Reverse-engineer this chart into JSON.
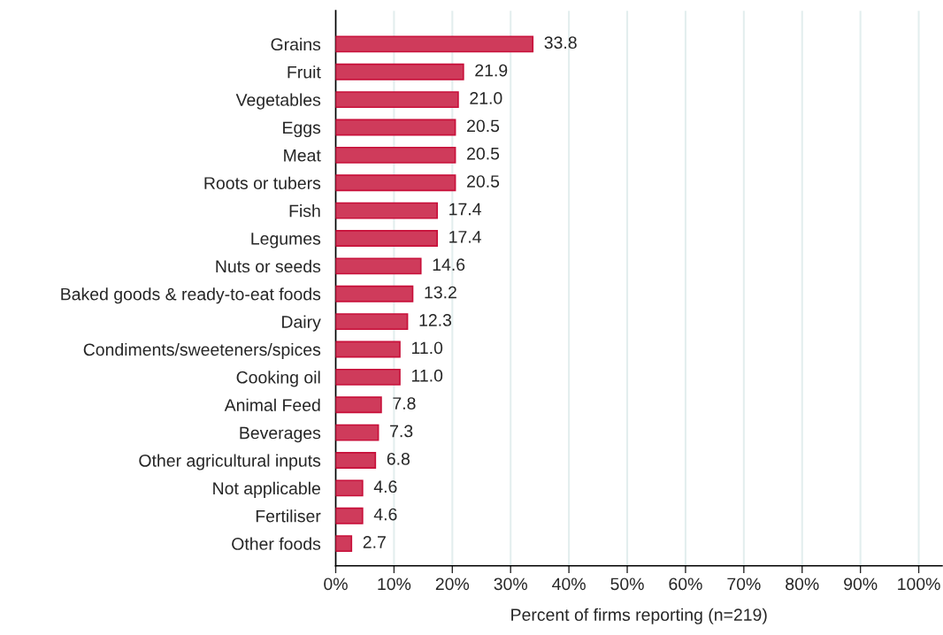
{
  "chart_data": {
    "type": "bar",
    "orientation": "horizontal",
    "xlabel": "Percent of firms reporting (n=219)",
    "categories": [
      "Grains",
      "Fruit",
      "Vegetables",
      "Eggs",
      "Meat",
      "Roots or tubers",
      "Fish",
      "Legumes",
      "Nuts or seeds",
      "Baked goods & ready-to-eat foods",
      "Dairy",
      "Condiments/sweeteners/spices",
      "Cooking oil",
      "Animal Feed",
      "Beverages",
      "Other agricultural inputs",
      "Not applicable",
      "Fertiliser",
      "Other foods"
    ],
    "values": [
      33.8,
      21.9,
      21.0,
      20.5,
      20.5,
      20.5,
      17.4,
      17.4,
      14.6,
      13.2,
      12.3,
      11.0,
      11.0,
      7.8,
      7.3,
      6.8,
      4.6,
      4.6,
      2.7
    ],
    "value_labels": [
      "33.8",
      "21.9",
      "21.0",
      "20.5",
      "20.5",
      "20.5",
      "17.4",
      "17.4",
      "14.6",
      "13.2",
      "12.3",
      "11.0",
      "11.0",
      "7.8",
      "7.3",
      "6.8",
      "4.6",
      "4.6",
      "2.7"
    ],
    "color": "#cf3b5b",
    "grid": "x",
    "xlim": [
      0,
      104
    ],
    "xticks": [
      {
        "value": 0,
        "label": "0%"
      },
      {
        "value": 10,
        "label": "10%"
      },
      {
        "value": 20,
        "label": "20%"
      },
      {
        "value": 30,
        "label": "30%"
      },
      {
        "value": 40,
        "label": "40%"
      },
      {
        "value": 50,
        "label": "50%"
      },
      {
        "value": 60,
        "label": "60%"
      },
      {
        "value": 70,
        "label": "70%"
      },
      {
        "value": 80,
        "label": "80%"
      },
      {
        "value": 90,
        "label": "90%"
      },
      {
        "value": 100,
        "label": "100%"
      }
    ]
  }
}
